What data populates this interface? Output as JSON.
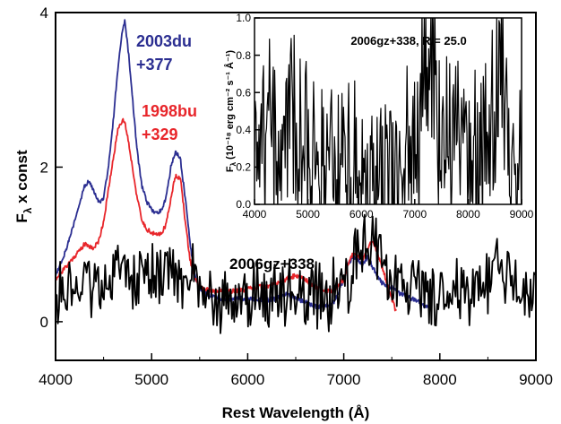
{
  "chart_data": [
    {
      "type": "line",
      "xlabel": "Rest Wavelength (Å)",
      "ylabel_main": "F",
      "ylabel_sub": "λ",
      "ylabel_tail": " x const",
      "xlim": [
        4000,
        9000
      ],
      "ylim": [
        -0.5,
        4.0
      ],
      "xticks": [
        4000,
        5000,
        6000,
        7000,
        8000,
        9000
      ],
      "yticks": [
        0,
        2,
        4
      ],
      "grid": false,
      "series": [
        {
          "name": "2003du +377",
          "label_line1": "2003du",
          "label_line2": "+377",
          "color": "#2b2e91",
          "x": [
            4000,
            4100,
            4200,
            4300,
            4350,
            4400,
            4450,
            4500,
            4550,
            4600,
            4650,
            4700,
            4720,
            4750,
            4800,
            4850,
            4900,
            4950,
            5000,
            5050,
            5100,
            5150,
            5200,
            5250,
            5300,
            5350,
            5400,
            5450,
            5500,
            5600,
            5700,
            5800,
            5900,
            6000,
            6100,
            6200,
            6300,
            6400,
            6500,
            6600,
            6700,
            6800,
            6900,
            7000,
            7050,
            7100,
            7150,
            7200,
            7250,
            7300,
            7350,
            7400,
            7500,
            7600,
            7700,
            7800,
            7900
          ],
          "y": [
            0.6,
            0.9,
            1.3,
            1.75,
            1.82,
            1.7,
            1.55,
            1.6,
            2.0,
            2.6,
            3.3,
            3.8,
            3.88,
            3.6,
            2.9,
            2.2,
            1.75,
            1.55,
            1.45,
            1.4,
            1.45,
            1.6,
            2.0,
            2.2,
            2.1,
            1.6,
            1.0,
            0.6,
            0.4,
            0.35,
            0.3,
            0.28,
            0.3,
            0.3,
            0.3,
            0.28,
            0.3,
            0.35,
            0.3,
            0.25,
            0.2,
            0.2,
            0.25,
            0.55,
            0.75,
            0.85,
            0.8,
            0.75,
            0.85,
            0.7,
            0.6,
            0.5,
            0.45,
            0.35,
            0.3,
            0.25,
            0.15
          ]
        },
        {
          "name": "1998bu +329",
          "label_line1": "1998bu",
          "label_line2": "+329",
          "color": "#e8262b",
          "x": [
            4000,
            4100,
            4200,
            4300,
            4350,
            4400,
            4450,
            4500,
            4550,
            4600,
            4650,
            4700,
            4720,
            4750,
            4800,
            4850,
            4900,
            4950,
            5000,
            5050,
            5100,
            5150,
            5200,
            5250,
            5300,
            5350,
            5400,
            5450,
            5500,
            5600,
            5700,
            5800,
            5900,
            6000,
            6100,
            6200,
            6300,
            6400,
            6500,
            6600,
            6700,
            6800,
            6900,
            7000,
            7050,
            7100,
            7150,
            7200,
            7250,
            7300,
            7350,
            7400,
            7450,
            7500,
            7550
          ],
          "y": [
            0.55,
            0.7,
            0.85,
            1.0,
            0.98,
            0.95,
            1.05,
            1.3,
            1.7,
            2.1,
            2.5,
            2.62,
            2.58,
            2.4,
            2.0,
            1.6,
            1.3,
            1.2,
            1.15,
            1.12,
            1.15,
            1.25,
            1.6,
            1.9,
            1.85,
            1.3,
            0.8,
            0.55,
            0.45,
            0.4,
            0.4,
            0.4,
            0.4,
            0.42,
            0.45,
            0.45,
            0.5,
            0.55,
            0.6,
            0.55,
            0.45,
            0.4,
            0.4,
            0.55,
            0.75,
            0.9,
            0.85,
            0.8,
            0.95,
            1.05,
            0.9,
            0.7,
            0.5,
            0.3,
            0.1
          ]
        },
        {
          "name": "2006gz+338",
          "label_line1": "2006gz+338",
          "color": "#000000",
          "noise": 0.35,
          "x": [
            4000,
            4300,
            4500,
            4600,
            4700,
            4800,
            5000,
            5200,
            5400,
            5600,
            5800,
            6000,
            6200,
            6400,
            6600,
            6800,
            7000,
            7100,
            7200,
            7300,
            7400,
            7500,
            7600,
            7800,
            8000,
            8200,
            8400,
            8500,
            8600,
            8700,
            8800,
            9000
          ],
          "y": [
            0.4,
            0.4,
            0.45,
            0.7,
            1.05,
            0.6,
            0.5,
            0.7,
            0.6,
            0.35,
            0.25,
            0.3,
            0.3,
            0.3,
            0.3,
            0.3,
            0.5,
            0.7,
            0.95,
            1.2,
            0.85,
            0.6,
            0.45,
            0.4,
            0.35,
            0.35,
            0.4,
            0.5,
            0.9,
            0.5,
            0.4,
            0.4
          ]
        }
      ]
    },
    {
      "type": "line",
      "title": "2006gz+338, R = 25.0",
      "ylabel": "F",
      "ylabel_sub": "λ",
      "ylabel_units": " (10⁻¹⁸ erg cm⁻² s⁻¹ Å⁻¹)",
      "xlim": [
        4000,
        9000
      ],
      "ylim": [
        0.0,
        1.0
      ],
      "xticks": [
        4000,
        5000,
        6000,
        7000,
        8000,
        9000
      ],
      "yticks": [
        0.0,
        0.2,
        0.4,
        0.6,
        0.8,
        1.0
      ],
      "grid": false,
      "series": [
        {
          "color": "#000000",
          "noise": 0.4,
          "x": [
            4000,
            4300,
            4500,
            4700,
            5000,
            5300,
            5600,
            6000,
            6400,
            6800,
            7000,
            7100,
            7200,
            7300,
            7400,
            7500,
            7700,
            8000,
            8300,
            8500,
            8600,
            8700,
            8800,
            9000
          ],
          "y": [
            0.45,
            0.4,
            0.35,
            0.4,
            0.4,
            0.3,
            0.2,
            0.2,
            0.25,
            0.25,
            0.3,
            0.5,
            0.75,
            0.9,
            0.55,
            0.35,
            0.3,
            0.25,
            0.3,
            0.45,
            0.85,
            0.4,
            0.3,
            0.2
          ]
        }
      ]
    }
  ]
}
